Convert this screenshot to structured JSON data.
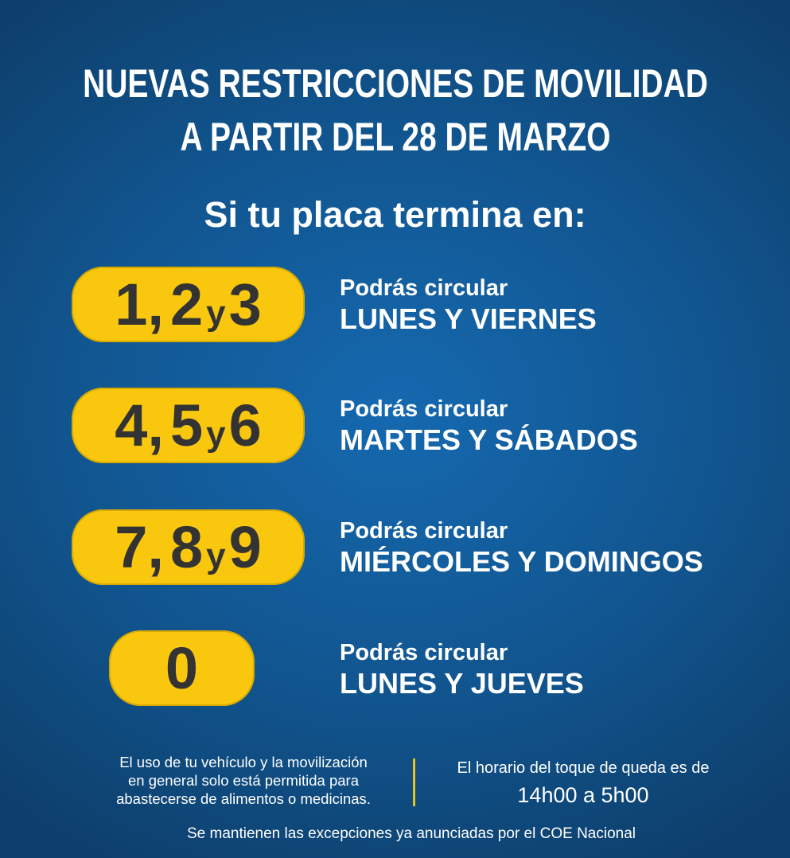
{
  "title": {
    "line1": "NUEVAS RESTRICCIONES DE MOVILIDAD",
    "line2": "A PARTIR DEL 28 DE MARZO"
  },
  "subtitle": "Si tu placa termina en:",
  "rows": [
    {
      "digits_a": "1,",
      "digits_b": "2",
      "connector": "y",
      "digits_c": "3",
      "prefix": "Podrás circular",
      "days": "LUNES Y VIERNES"
    },
    {
      "digits_a": "4,",
      "digits_b": "5",
      "connector": "y",
      "digits_c": "6",
      "prefix": "Podrás circular",
      "days": "MARTES Y SÁBADOS"
    },
    {
      "digits_a": "7,",
      "digits_b": "8",
      "connector": "y",
      "digits_c": "9",
      "prefix": "Podrás circular",
      "days": "MIÉRCOLES Y DOMINGOS"
    },
    {
      "digits_a": "0",
      "prefix": "Podrás circular",
      "days": "LUNES Y JUEVES"
    }
  ],
  "footer": {
    "left": [
      "El uso de tu vehículo y la movilización",
      "en general solo está permitida para",
      "abastecerse de alimentos o medicinas."
    ],
    "right_line1": "El horario del toque de queda es de",
    "right_line2": "14h00 a 5h00",
    "bottom": "Se mantienen las excepciones ya anunciadas por el COE Nacional"
  },
  "colors": {
    "accent": "#f9c80e",
    "background": "#11558f",
    "pill_text": "#333333"
  }
}
